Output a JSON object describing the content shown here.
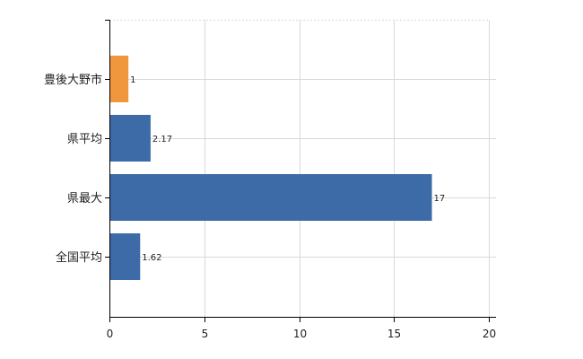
{
  "chart_data": {
    "type": "bar",
    "orientation": "horizontal",
    "categories": [
      "豊後大野市",
      "県平均",
      "県最大",
      "全国平均"
    ],
    "values": [
      1,
      2.17,
      17,
      1.62
    ],
    "value_labels": [
      "1",
      "2.17",
      "17",
      "1.62"
    ],
    "bar_colors": [
      "#f0963c",
      "#3c6ba8",
      "#3c6ba8",
      "#3c6ba8"
    ],
    "xlim": [
      0,
      20
    ],
    "x_ticks": [
      0,
      5,
      10,
      15,
      20
    ],
    "grid": true,
    "legend": "none"
  }
}
